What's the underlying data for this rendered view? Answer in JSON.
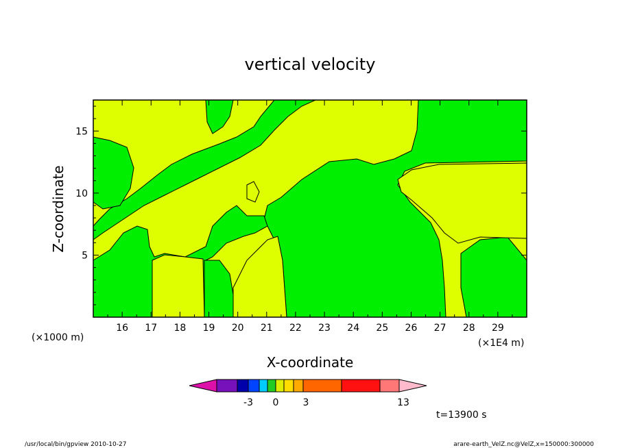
{
  "chart_data": {
    "type": "heatmap",
    "title": "vertical velocity",
    "xlabel": "X-coordinate",
    "ylabel": "Z-coordinate",
    "x_scale_label": "(×1E4 m)",
    "y_scale_label": "(×1000 m)",
    "x_ticks": [
      16,
      17,
      18,
      19,
      20,
      21,
      22,
      23,
      24,
      25,
      26,
      27,
      28,
      29
    ],
    "y_ticks": [
      5,
      10,
      15
    ],
    "xlim": [
      15,
      30
    ],
    "ylim": [
      0,
      17.5
    ],
    "colorbar": {
      "colors": [
        "#dd11aa",
        "#7711bb",
        "#0000aa",
        "#0044ff",
        "#00ccff",
        "#22cc22",
        "#ddee00",
        "#ffdd00",
        "#ffaa00",
        "#ff6600",
        "#ff1111",
        "#ff7777",
        "#ffbbcc"
      ],
      "labels": [
        "-3",
        "0",
        "3",
        "13"
      ],
      "label_positions": [
        -3,
        0,
        3,
        13
      ]
    },
    "time_label": "t=13900 s"
  },
  "footer": {
    "left": "/usr/local/bin/gpview   2010-10-27",
    "right": "arare-earth_VelZ.nc@VelZ,x=150000:300000"
  }
}
